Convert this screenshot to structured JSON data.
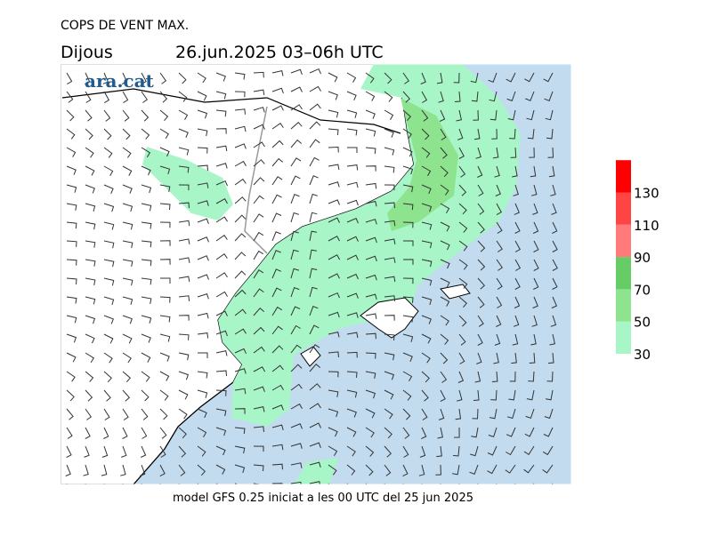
{
  "header": {
    "title": "COPS DE VENT MAX.",
    "day": "Dijous",
    "period": "26.jun.2025 03–06h UTC",
    "logo": "ara.cat"
  },
  "footer": "model GFS 0.25 iniciat a les 00 UTC del 25 jun 2025",
  "legend": {
    "ticks": [
      30,
      50,
      70,
      90,
      110,
      130
    ],
    "colors": [
      "#a8f5c8",
      "#8ee48e",
      "#66cc66",
      "#ff7a7a",
      "#ff4444",
      "#ff0000"
    ]
  }
}
